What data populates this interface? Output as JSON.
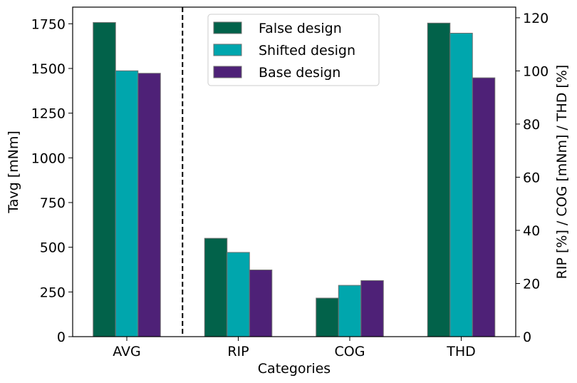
{
  "chart_data": {
    "type": "bar",
    "title": "",
    "xlabel": "Categories",
    "ylabel_left": "Tavg [mNm]",
    "ylabel_right": "RIP [%] / COG [mNm] / THD [%]",
    "categories": [
      "AVG",
      "RIP",
      "COG",
      "THD"
    ],
    "left_axis": {
      "ylim": [
        0,
        1843
      ],
      "ticks": [
        0,
        250,
        500,
        750,
        1000,
        1250,
        1500,
        1750
      ],
      "applies_to": [
        "AVG"
      ]
    },
    "right_axis": {
      "ylim": [
        0,
        124
      ],
      "ticks": [
        0,
        20,
        40,
        60,
        80,
        100,
        120
      ],
      "applies_to": [
        "RIP",
        "COG",
        "THD"
      ]
    },
    "series": [
      {
        "name": "False design",
        "color": "#02624a",
        "values": [
          1757,
          37,
          14.5,
          118
        ]
      },
      {
        "name": "Shifted design",
        "color": "#00a6ad",
        "values": [
          1487,
          31.7,
          19.3,
          114.2
        ]
      },
      {
        "name": "Base design",
        "color": "#4e2177",
        "values": [
          1473,
          25.1,
          21.1,
          97.4
        ]
      }
    ],
    "separator": "dashed vertical line between AVG and RIP",
    "legend_position": "top-center",
    "grid": false
  }
}
